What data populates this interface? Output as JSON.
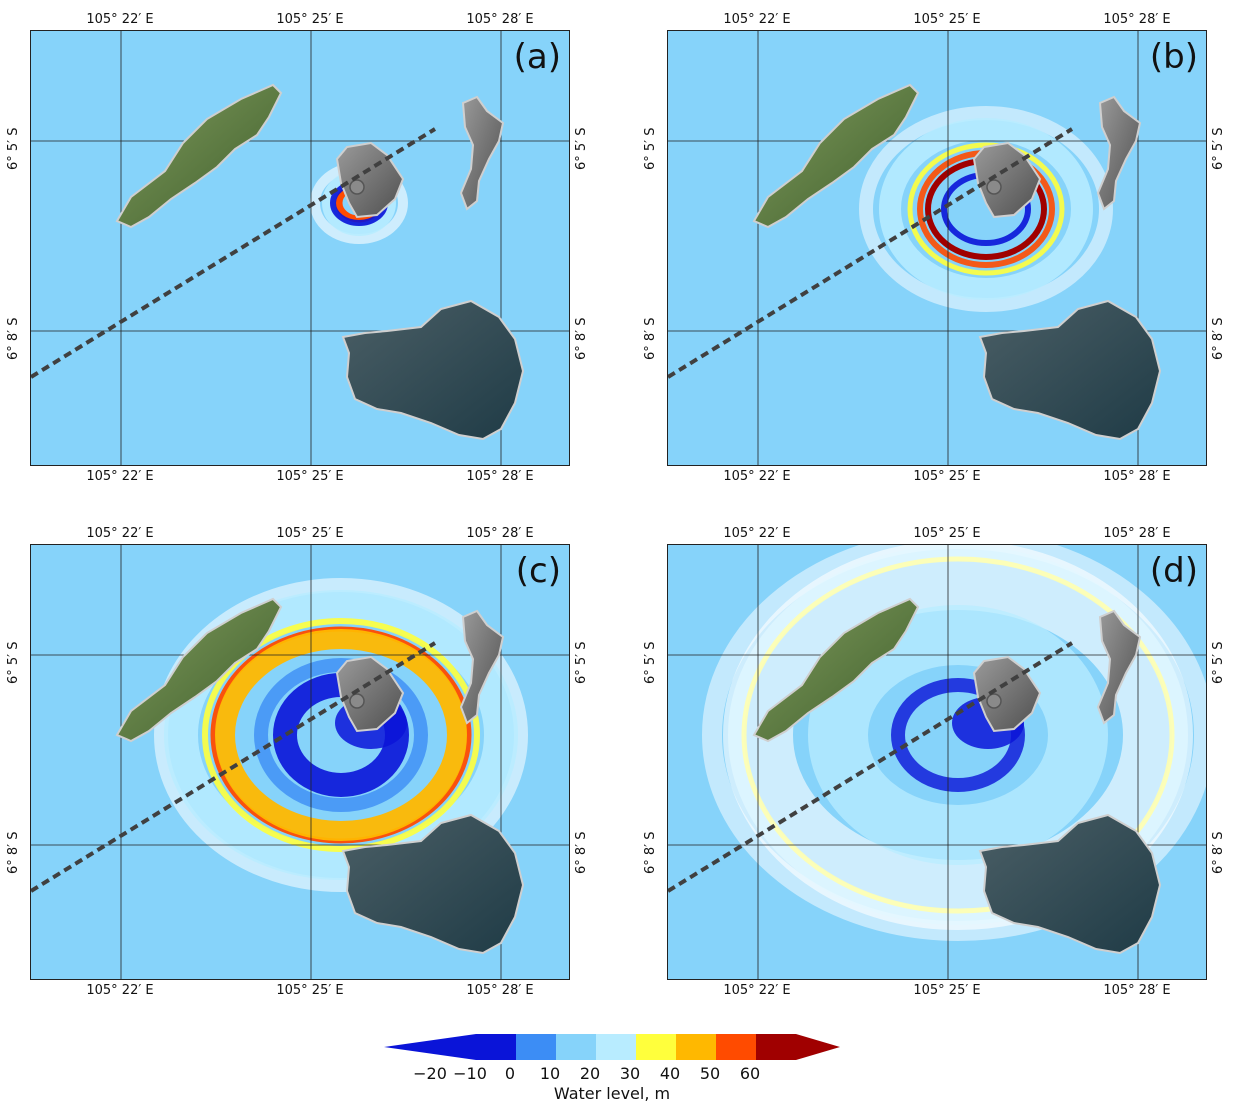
{
  "lon_labels": [
    "105° 22′ E",
    "105° 25′ E",
    "105° 28′ E"
  ],
  "lat_labels": [
    "6° 5′ S",
    "6° 8′ S"
  ],
  "panels": [
    {
      "label": "(a)",
      "stage": 1
    },
    {
      "label": "(b)",
      "stage": 2
    },
    {
      "label": "(c)",
      "stage": 3
    },
    {
      "label": "(d)",
      "stage": 4
    }
  ],
  "colorbar": {
    "title": "Water level, m",
    "ticks": [
      "−20",
      "−10",
      "0",
      "10",
      "20",
      "30",
      "40",
      "50",
      "60"
    ],
    "colors": [
      "#0a14d8",
      "#3c8df5",
      "#86d3fa",
      "#b8ecff",
      "#ffff3c",
      "#ffb800",
      "#ff4b00",
      "#a00000"
    ],
    "extend_low_color": "#0a14d8",
    "extend_high_color": "#a00000"
  },
  "colors": {
    "sea": "#86d3fa",
    "island_green": "#5a7a3c",
    "island_grey": "#6f6f6f",
    "island_dark": "#2d4a55",
    "profile_line": "#404040"
  }
}
